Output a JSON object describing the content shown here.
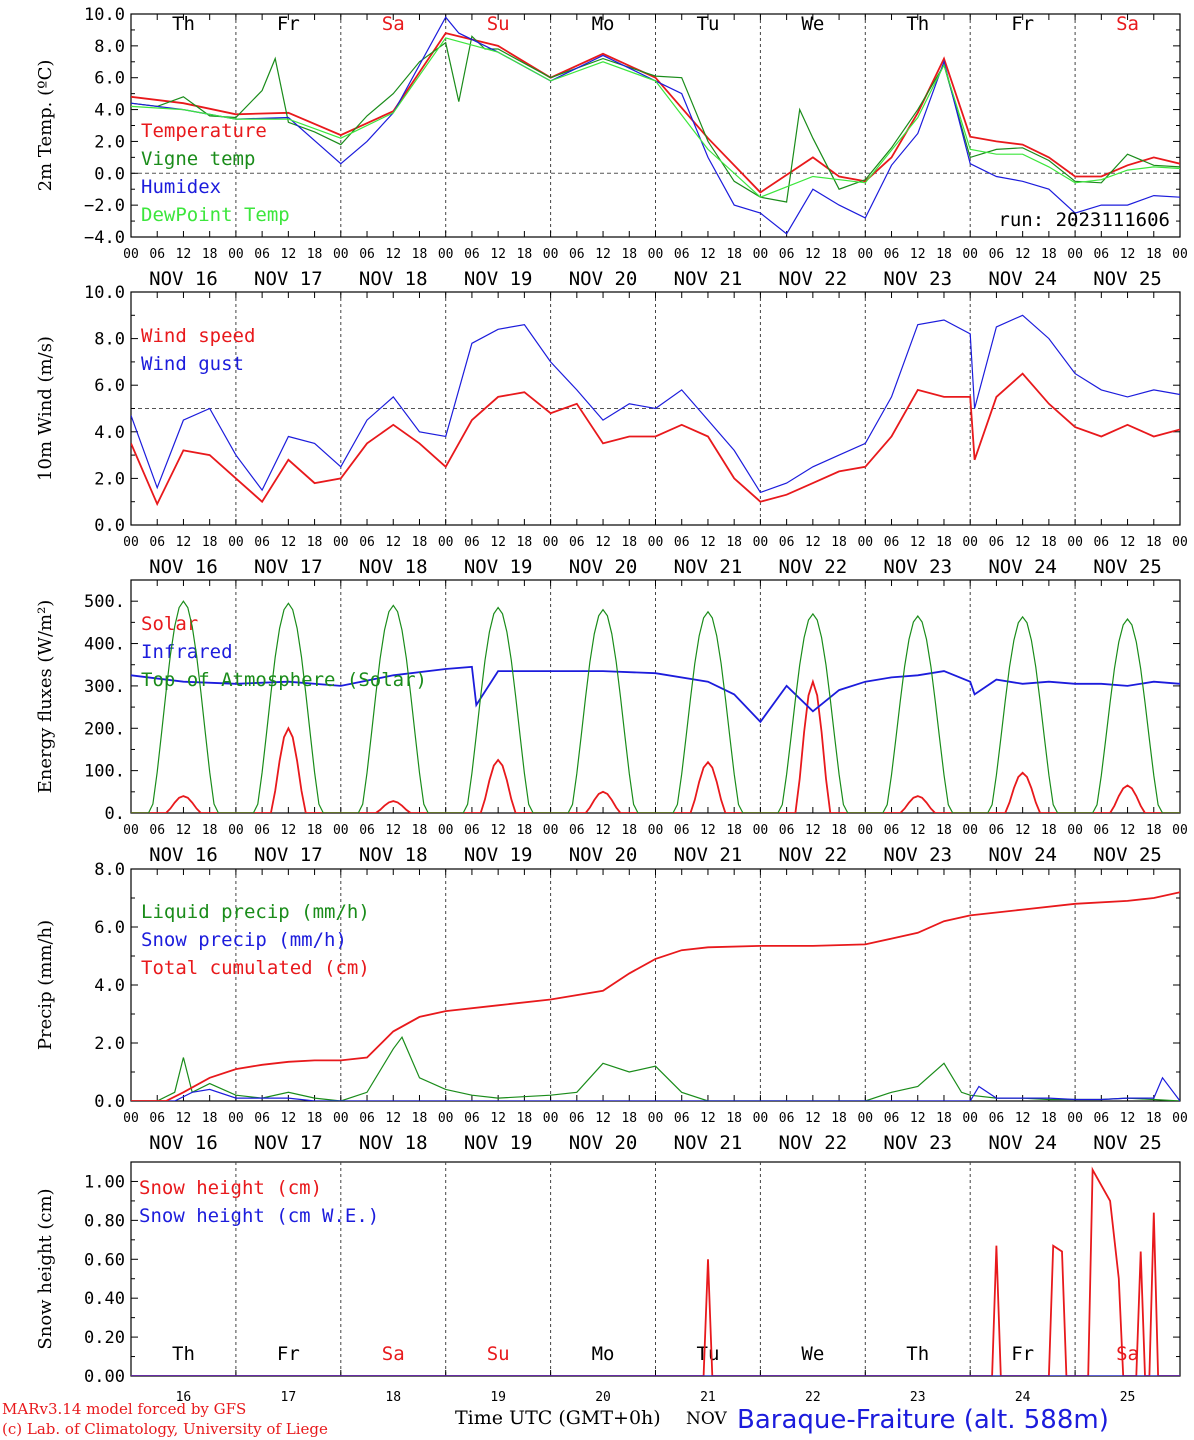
{
  "run_label": "run: 2023111606",
  "footer": {
    "model_line": "MARv3.14 model forced by GFS",
    "credit_line": "(c) Lab. of Climatology, University of Liege",
    "time_label": "Time UTC (GMT+0h)",
    "month": "NOV",
    "station": "Baraque-Fraiture (alt. 588m)"
  },
  "days": [
    "Th",
    "Fr",
    "Sa",
    "Su",
    "Mo",
    "Tu",
    "We",
    "Th",
    "Fr",
    "Sa"
  ],
  "weekend_flags": [
    false,
    false,
    true,
    true,
    false,
    false,
    false,
    false,
    false,
    true
  ],
  "date_labels": [
    "NOV 16",
    "NOV 17",
    "NOV 18",
    "NOV 19",
    "NOV 20",
    "NOV 21",
    "NOV 22",
    "NOV 23",
    "NOV 24",
    "NOV 25"
  ],
  "day_numbers": [
    "16",
    "17",
    "18",
    "19",
    "20",
    "21",
    "22",
    "23",
    "24",
    "25"
  ],
  "hour_ticks": [
    "00",
    "06",
    "12",
    "18"
  ],
  "colors": {
    "red": "#e8191c",
    "green": "#1a8c1a",
    "blue": "#1c1cdc",
    "lightgreen": "#3ce63c",
    "axis": "#000000",
    "grid": "#555555"
  },
  "chart_data": [
    {
      "type": "line",
      "ylabel": "2m Temp. (ºC)",
      "ylim": [
        -4,
        10
      ],
      "yticks": [
        "10.0",
        "8.0",
        "6.0",
        "4.0",
        "2.0",
        "0.0",
        "−2.0",
        "−4.0"
      ],
      "ytick_values": [
        10,
        8,
        6,
        4,
        2,
        0,
        -2,
        -4
      ],
      "hline": 0,
      "x_unit": "hours since NOV 16 00 UTC",
      "series": [
        {
          "name": "Temperature",
          "color": "red",
          "x": [
            0,
            12,
            24,
            36,
            48,
            60,
            72,
            84,
            96,
            108,
            120,
            132,
            144,
            156,
            162,
            168,
            174,
            180,
            186,
            192,
            198,
            204,
            210,
            216,
            222,
            228,
            234,
            240
          ],
          "values": [
            4.8,
            4.4,
            3.7,
            3.8,
            2.4,
            3.9,
            8.8,
            8.0,
            6.0,
            7.5,
            6.0,
            2.2,
            -1.2,
            1.0,
            -0.2,
            -0.5,
            1.0,
            3.8,
            7.2,
            2.3,
            2.0,
            1.8,
            1.0,
            -0.2,
            -0.2,
            0.5,
            1.0,
            0.6
          ]
        },
        {
          "name": "Vigne temp",
          "color": "green",
          "x": [
            0,
            6,
            12,
            18,
            24,
            30,
            33,
            36,
            42,
            48,
            54,
            60,
            66,
            72,
            75,
            78,
            81,
            84,
            96,
            108,
            120,
            126,
            132,
            138,
            144,
            150,
            153,
            156,
            162,
            168,
            174,
            180,
            186,
            192,
            198,
            204,
            210,
            216,
            222,
            228,
            234,
            240
          ],
          "values": [
            4.4,
            4.2,
            4.8,
            3.6,
            3.5,
            5.2,
            7.2,
            3.2,
            2.6,
            1.8,
            3.6,
            5.0,
            7.0,
            8.2,
            4.5,
            8.6,
            7.8,
            7.8,
            6.0,
            7.2,
            6.1,
            6.0,
            2.0,
            -0.5,
            -1.5,
            -1.8,
            4.0,
            2.2,
            -1.0,
            -0.4,
            1.6,
            4.0,
            6.8,
            1.0,
            1.5,
            1.6,
            0.8,
            -0.5,
            -0.6,
            1.2,
            0.5,
            0.4
          ]
        },
        {
          "name": "Humidex",
          "color": "blue",
          "x": [
            0,
            12,
            24,
            36,
            48,
            54,
            60,
            72,
            75,
            84,
            96,
            108,
            120,
            126,
            132,
            138,
            144,
            150,
            156,
            162,
            168,
            174,
            180,
            186,
            192,
            198,
            204,
            210,
            216,
            222,
            228,
            234,
            240
          ],
          "values": [
            4.4,
            4.0,
            3.4,
            3.5,
            0.6,
            2.0,
            3.8,
            9.8,
            8.8,
            7.6,
            5.8,
            7.4,
            5.8,
            5.0,
            1.0,
            -2.0,
            -2.5,
            -3.8,
            -1.0,
            -2.0,
            -2.8,
            0.5,
            2.5,
            7.0,
            0.6,
            -0.2,
            -0.5,
            -1.0,
            -2.5,
            -2.0,
            -2.0,
            -1.4,
            -1.5
          ]
        },
        {
          "name": "DewPoint Temp",
          "color": "lightgreen",
          "x": [
            0,
            12,
            24,
            36,
            48,
            60,
            72,
            84,
            96,
            108,
            120,
            132,
            144,
            156,
            168,
            180,
            186,
            192,
            198,
            204,
            210,
            216,
            222,
            228,
            234,
            240
          ],
          "values": [
            4.2,
            4.0,
            3.4,
            3.4,
            2.2,
            3.8,
            8.5,
            7.6,
            5.8,
            7.0,
            5.8,
            1.5,
            -1.5,
            -0.2,
            -0.6,
            3.5,
            6.8,
            1.5,
            1.2,
            1.2,
            0.4,
            -0.6,
            -0.4,
            0.2,
            0.4,
            0.3
          ]
        }
      ]
    },
    {
      "type": "line",
      "ylabel": "10m Wind (m/s)",
      "ylim": [
        0,
        10
      ],
      "yticks": [
        "10.0",
        "8.0",
        "6.0",
        "4.0",
        "2.0",
        "0.0"
      ],
      "ytick_values": [
        10,
        8,
        6,
        4,
        2,
        0
      ],
      "hline": 5,
      "x_unit": "hours since NOV 16 00 UTC",
      "series": [
        {
          "name": "Wind speed",
          "color": "red",
          "x": [
            0,
            6,
            12,
            18,
            24,
            30,
            36,
            42,
            48,
            54,
            60,
            66,
            72,
            78,
            84,
            90,
            96,
            102,
            108,
            114,
            120,
            126,
            132,
            138,
            144,
            150,
            156,
            162,
            168,
            174,
            180,
            186,
            192,
            193,
            198,
            204,
            210,
            216,
            222,
            228,
            234,
            240
          ],
          "values": [
            3.5,
            0.9,
            3.2,
            3.0,
            2.0,
            1.0,
            2.8,
            1.8,
            2.0,
            3.5,
            4.3,
            3.5,
            2.5,
            4.5,
            5.5,
            5.7,
            4.8,
            5.2,
            3.5,
            3.8,
            3.8,
            4.3,
            3.8,
            2.0,
            1.0,
            1.3,
            1.8,
            2.3,
            2.5,
            3.8,
            5.8,
            5.5,
            5.5,
            2.8,
            5.5,
            6.5,
            5.2,
            4.2,
            3.8,
            4.3,
            3.8,
            4.1
          ]
        },
        {
          "name": "Wind gust",
          "color": "blue",
          "x": [
            0,
            6,
            12,
            18,
            24,
            30,
            36,
            42,
            48,
            54,
            60,
            66,
            72,
            78,
            84,
            90,
            96,
            102,
            108,
            114,
            120,
            126,
            132,
            138,
            144,
            150,
            156,
            162,
            168,
            174,
            180,
            186,
            192,
            193,
            198,
            204,
            210,
            216,
            222,
            228,
            234,
            240
          ],
          "values": [
            4.7,
            1.6,
            4.5,
            5.0,
            3.0,
            1.5,
            3.8,
            3.5,
            2.5,
            4.5,
            5.5,
            4.0,
            3.8,
            7.8,
            8.4,
            8.6,
            7.0,
            5.8,
            4.5,
            5.2,
            5.0,
            5.8,
            4.5,
            3.2,
            1.4,
            1.8,
            2.5,
            3.0,
            3.5,
            5.5,
            8.6,
            8.8,
            8.2,
            5.0,
            8.5,
            9.0,
            8.0,
            6.5,
            5.8,
            5.5,
            5.8,
            5.6
          ]
        }
      ]
    },
    {
      "type": "line",
      "ylabel": "Energy fluxes (W/m²)",
      "ylim": [
        0,
        550
      ],
      "yticks": [
        "500.",
        "400.",
        "300.",
        "200.",
        "100.",
        "0."
      ],
      "ytick_values": [
        500,
        400,
        300,
        200,
        100,
        0
      ],
      "x_unit": "hours since NOV 16 00 UTC",
      "toa_peaks": [
        500,
        495,
        490,
        485,
        480,
        475,
        470,
        465,
        463,
        458
      ],
      "solar_peaks": [
        40,
        200,
        28,
        125,
        50,
        120,
        310,
        40,
        95,
        65
      ],
      "series": [
        {
          "name": "Solar",
          "color": "red",
          "kind": "daily",
          "peaks_key": "solar_peaks"
        },
        {
          "name": "Infrared",
          "color": "blue",
          "x": [
            0,
            12,
            24,
            36,
            48,
            60,
            72,
            78,
            79,
            84,
            96,
            108,
            120,
            132,
            138,
            144,
            150,
            156,
            162,
            168,
            174,
            180,
            186,
            192,
            193,
            198,
            204,
            210,
            216,
            222,
            228,
            234,
            240
          ],
          "values": [
            325,
            310,
            305,
            310,
            300,
            325,
            340,
            345,
            255,
            335,
            335,
            335,
            330,
            310,
            280,
            215,
            300,
            240,
            290,
            310,
            320,
            325,
            335,
            310,
            280,
            315,
            305,
            310,
            305,
            305,
            300,
            310,
            305
          ]
        },
        {
          "name": "Top of Atmosphere (Solar)",
          "color": "green",
          "kind": "daily",
          "peaks_key": "toa_peaks"
        }
      ]
    },
    {
      "type": "line",
      "ylabel": "Precip (mm/h)",
      "ylim": [
        0,
        8
      ],
      "yticks": [
        "8.0",
        "6.0",
        "4.0",
        "2.0",
        "0.0"
      ],
      "ytick_values": [
        8,
        6,
        4,
        2,
        0
      ],
      "x_unit": "hours since NOV 16 00 UTC",
      "series": [
        {
          "name": "Liquid precip (mm/h)",
          "color": "green",
          "x": [
            0,
            6,
            10,
            12,
            14,
            18,
            24,
            30,
            36,
            42,
            48,
            54,
            60,
            62,
            66,
            72,
            78,
            84,
            96,
            102,
            108,
            114,
            120,
            126,
            132,
            144,
            156,
            168,
            174,
            180,
            186,
            190,
            192,
            198,
            204,
            210,
            216,
            222,
            228,
            234,
            240
          ],
          "values": [
            0,
            0,
            0.3,
            1.5,
            0.3,
            0.6,
            0.2,
            0.1,
            0.3,
            0.1,
            0,
            0.3,
            1.8,
            2.2,
            0.8,
            0.4,
            0.2,
            0.1,
            0.2,
            0.3,
            1.3,
            1.0,
            1.2,
            0.3,
            0,
            0,
            0,
            0,
            0.3,
            0.5,
            1.3,
            0.3,
            0.2,
            0.1,
            0.1,
            0.05,
            0.05,
            0.05,
            0.1,
            0.05,
            0
          ]
        },
        {
          "name": "Snow precip (mm/h)",
          "color": "blue",
          "x": [
            0,
            10,
            14,
            18,
            24,
            30,
            36,
            42,
            48,
            144,
            168,
            180,
            192,
            194,
            198,
            204,
            210,
            216,
            222,
            228,
            234,
            236,
            240
          ],
          "values": [
            0,
            0,
            0.3,
            0.4,
            0.1,
            0.1,
            0.1,
            0,
            0,
            0,
            0,
            0,
            0,
            0.5,
            0.1,
            0.1,
            0.1,
            0.05,
            0.05,
            0.1,
            0.1,
            0.8,
            0
          ]
        },
        {
          "name": "Total cumulated (cm)",
          "color": "red",
          "x": [
            0,
            8,
            12,
            18,
            24,
            30,
            36,
            42,
            48,
            54,
            60,
            66,
            72,
            84,
            96,
            108,
            114,
            120,
            126,
            132,
            144,
            156,
            168,
            174,
            180,
            186,
            192,
            204,
            216,
            228,
            234,
            240
          ],
          "values": [
            0,
            0,
            0.3,
            0.8,
            1.1,
            1.25,
            1.35,
            1.4,
            1.4,
            1.5,
            2.4,
            2.9,
            3.1,
            3.3,
            3.5,
            3.8,
            4.4,
            4.9,
            5.2,
            5.3,
            5.35,
            5.35,
            5.4,
            5.6,
            5.8,
            6.2,
            6.4,
            6.6,
            6.8,
            6.9,
            7.0,
            7.2
          ]
        }
      ]
    },
    {
      "type": "line",
      "ylabel": "Snow height (cm)",
      "ylim": [
        0,
        1.1
      ],
      "yticks": [
        "1.00",
        "0.80",
        "0.60",
        "0.40",
        "0.20",
        "0.00"
      ],
      "ytick_values": [
        1.0,
        0.8,
        0.6,
        0.4,
        0.2,
        0.0
      ],
      "x_unit": "hours since NOV 16 00 UTC",
      "series": [
        {
          "name": "Snow height (cm)",
          "color": "red",
          "x": [
            0,
            131,
            132,
            133,
            197,
            198,
            199,
            210,
            211,
            213,
            214,
            219,
            220,
            224,
            226,
            227,
            230,
            231,
            232,
            233,
            234,
            235,
            240
          ],
          "values": [
            0,
            0,
            0.6,
            0,
            0,
            0.67,
            0,
            0,
            0.67,
            0.64,
            0,
            0,
            1.06,
            0.9,
            0.5,
            0,
            0,
            0.64,
            0,
            0,
            0.84,
            0,
            0
          ]
        },
        {
          "name": "Snow height (cm W.E.)",
          "color": "blue",
          "x": [
            0,
            240
          ],
          "values": [
            0,
            0
          ]
        }
      ]
    }
  ]
}
